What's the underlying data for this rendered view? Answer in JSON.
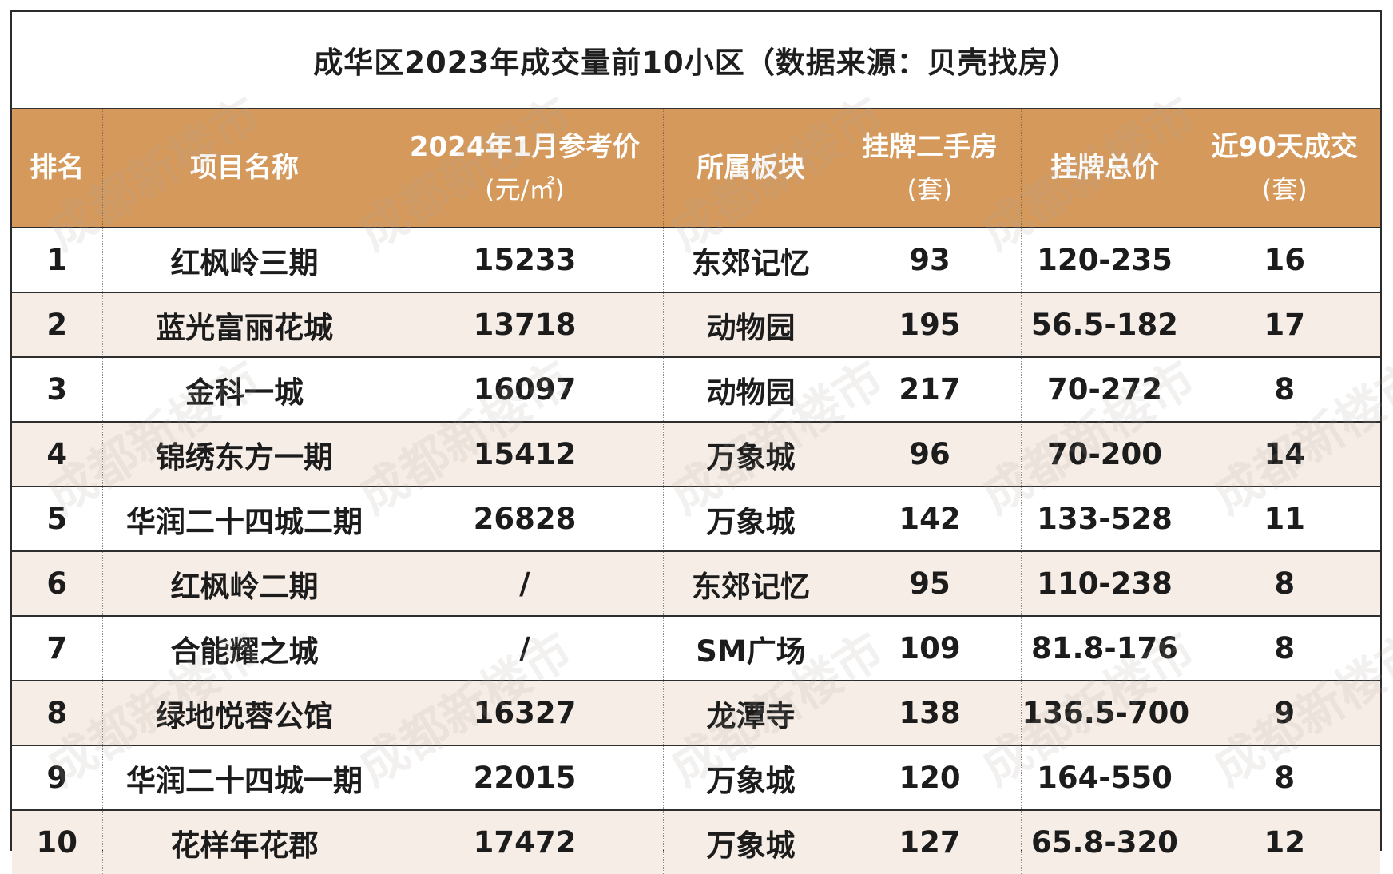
{
  "title": "成华区2023年成交量前10小区（数据来源：贝壳找房）",
  "headers": [
    {
      "line1": "排名",
      "line2": ""
    },
    {
      "line1": "项目名称",
      "line2": ""
    },
    {
      "line1": "2024年1月参考价",
      "line2": "(元/㎡)"
    },
    {
      "line1": "所属板块",
      "line2": ""
    },
    {
      "line1": "挂牌二手房",
      "line2": "(套)"
    },
    {
      "line1": "挂牌总价",
      "line2": ""
    },
    {
      "line1": "近90天成交",
      "line2": "(套)"
    }
  ],
  "rows": [
    [
      "1",
      "红枫岭三期",
      "15233",
      "东郊记忆",
      "93",
      "120-235",
      "16"
    ],
    [
      "2",
      "蓝光富丽花城",
      "13718",
      "动物园",
      "195",
      "56.5-182",
      "17"
    ],
    [
      "3",
      "金科一城",
      "16097",
      "动物园",
      "217",
      "70-272",
      "8"
    ],
    [
      "4",
      "锦绣东方一期",
      "15412",
      "万象城",
      "96",
      "70-200",
      "14"
    ],
    [
      "5",
      "华润二十四城二期",
      "26828",
      "万象城",
      "142",
      "133-528",
      "11"
    ],
    [
      "6",
      "红枫岭二期",
      "/",
      "东郊记忆",
      "95",
      "110-238",
      "8"
    ],
    [
      "7",
      "合能耀之城",
      "/",
      "SM广场",
      "109",
      "81.8-176",
      "8"
    ],
    [
      "8",
      "绿地悦蓉公馆",
      "16327",
      "龙潭寺",
      "138",
      "136.5-700",
      "9"
    ],
    [
      "9",
      "华润二十四城一期",
      "22015",
      "万象城",
      "120",
      "164-550",
      "8"
    ],
    [
      "10",
      "花样年花郡",
      "17472",
      "万象城",
      "127",
      "65.8-320",
      "12"
    ]
  ],
  "watermark": "成都新楼市",
  "colors": {
    "header_bg": "#d5995b",
    "header_text": "#ffffff",
    "alt_row_bg": "#f6ede6"
  }
}
